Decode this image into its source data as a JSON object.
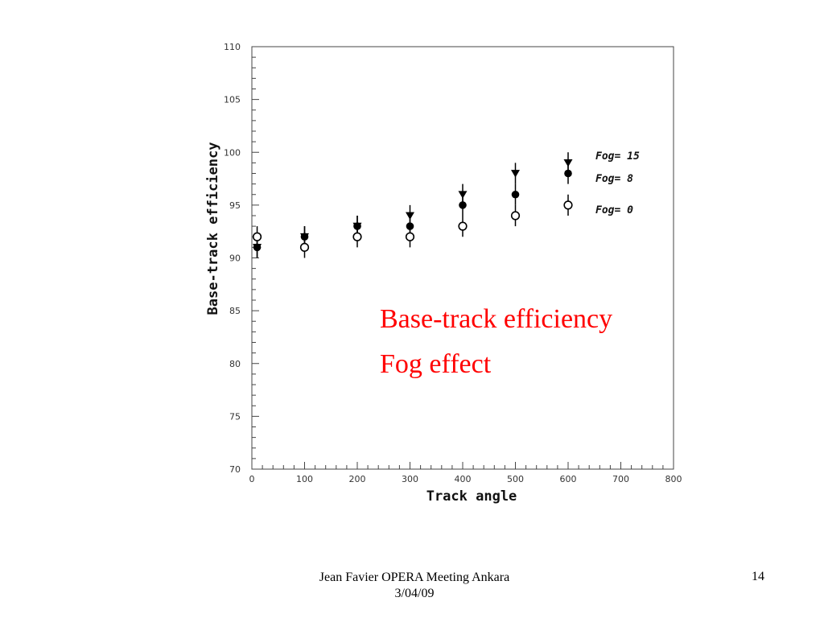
{
  "chart_data": {
    "type": "scatter",
    "title": "",
    "xlabel": "Track angle",
    "ylabel": "Base-track efficiency",
    "xlim": [
      0,
      800
    ],
    "ylim": [
      70,
      110
    ],
    "x_ticks": [
      0,
      100,
      200,
      300,
      400,
      500,
      600,
      700,
      800
    ],
    "y_ticks": [
      70,
      75,
      80,
      85,
      90,
      95,
      100,
      105,
      110
    ],
    "grid": false,
    "legend_position": "top-right",
    "series": [
      {
        "name": "Fog= 15",
        "marker": "down-triangle",
        "points": [
          {
            "x": 10,
            "y": 91
          },
          {
            "x": 100,
            "y": 92
          },
          {
            "x": 200,
            "y": 93
          },
          {
            "x": 300,
            "y": 94
          },
          {
            "x": 400,
            "y": 96
          },
          {
            "x": 500,
            "y": 98
          },
          {
            "x": 600,
            "y": 99
          }
        ],
        "error": 1
      },
      {
        "name": "Fog=  8",
        "marker": "filled-circle",
        "points": [
          {
            "x": 10,
            "y": 91
          },
          {
            "x": 100,
            "y": 92
          },
          {
            "x": 200,
            "y": 93
          },
          {
            "x": 300,
            "y": 93
          },
          {
            "x": 400,
            "y": 95
          },
          {
            "x": 500,
            "y": 96
          },
          {
            "x": 600,
            "y": 98
          }
        ],
        "error": 1
      },
      {
        "name": "Fog=  0",
        "marker": "open-circle",
        "points": [
          {
            "x": 10,
            "y": 92
          },
          {
            "x": 100,
            "y": 91
          },
          {
            "x": 200,
            "y": 92
          },
          {
            "x": 300,
            "y": 92
          },
          {
            "x": 400,
            "y": 93
          },
          {
            "x": 500,
            "y": 94
          },
          {
            "x": 600,
            "y": 95
          }
        ],
        "error": 1
      }
    ],
    "annotations": [
      "Base-track efficiency",
      "Fog effect"
    ]
  },
  "footer": {
    "line1": "Jean Favier  OPERA Meeting Ankara",
    "line2": "3/04/09",
    "page_number": "14"
  },
  "colors": {
    "annotation": "#ff0000",
    "marker": "#000000"
  }
}
